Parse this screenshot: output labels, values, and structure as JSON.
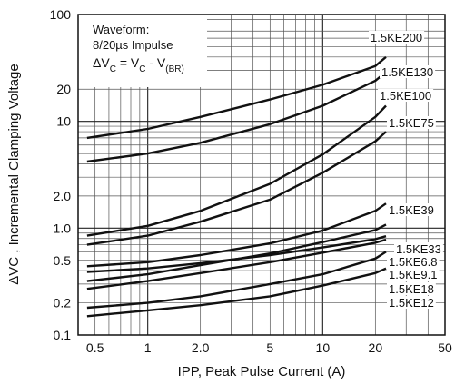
{
  "chart_data": {
    "type": "line",
    "xscale": "log",
    "yscale": "log",
    "xlim": [
      0.4,
      50
    ],
    "ylim": [
      0.1,
      100
    ],
    "grid": true,
    "xlabel": "IPP, Peak Pulse Current (A)",
    "ylabel": "ΔVC , Incremental Clamping Voltage",
    "x_ticks": [
      {
        "v": 0.5,
        "label": "0.5"
      },
      {
        "v": 1,
        "label": "1"
      },
      {
        "v": 2,
        "label": "2.0"
      },
      {
        "v": 5,
        "label": "5"
      },
      {
        "v": 10,
        "label": "10"
      },
      {
        "v": 20,
        "label": "20"
      },
      {
        "v": 50,
        "label": "50"
      }
    ],
    "y_ticks": [
      {
        "v": 0.1,
        "label": "0.1"
      },
      {
        "v": 0.2,
        "label": "0.2"
      },
      {
        "v": 0.5,
        "label": "0.5"
      },
      {
        "v": 1,
        "label": "1.0"
      },
      {
        "v": 2,
        "label": "2.0"
      },
      {
        "v": 10,
        "label": "10"
      },
      {
        "v": 20,
        "label": "20"
      },
      {
        "v": 100,
        "label": "100"
      }
    ],
    "annotation": {
      "line1": "Waveform:",
      "line2": "8/20µs Impulse",
      "line3_prefix": "ΔV",
      "line3_sub1": "C",
      "line3_mid": " = V",
      "line3_sub2": "C",
      "line3_dash": " - V",
      "line3_sub3": "(BR)"
    },
    "series": [
      {
        "name": "1.5KE200",
        "x": [
          0.45,
          1,
          2,
          5,
          10,
          20,
          23
        ],
        "y": [
          7.0,
          8.5,
          11,
          16,
          22,
          33,
          40
        ]
      },
      {
        "name": "1.5KE130",
        "x": [
          0.45,
          1,
          2,
          5,
          10,
          20,
          23
        ],
        "y": [
          4.2,
          5.0,
          6.3,
          9.4,
          14,
          24,
          29
        ]
      },
      {
        "name": "1.5KE100",
        "x": [
          0.45,
          1,
          2,
          5,
          10,
          20,
          23
        ],
        "y": [
          0.85,
          1.05,
          1.45,
          2.6,
          4.9,
          11,
          14
        ]
      },
      {
        "name": "1.5KE75",
        "x": [
          0.45,
          1,
          2,
          5,
          10,
          20,
          23
        ],
        "y": [
          0.7,
          0.85,
          1.15,
          1.85,
          3.3,
          6.5,
          8
        ]
      },
      {
        "name": "1.5KE39",
        "x": [
          0.45,
          1,
          2,
          5,
          10,
          20,
          23
        ],
        "y": [
          0.44,
          0.48,
          0.56,
          0.72,
          0.95,
          1.45,
          1.7
        ]
      },
      {
        "name": "1.5KE33",
        "x": [
          0.45,
          1,
          2,
          5,
          10,
          20,
          23
        ],
        "y": [
          0.32,
          0.37,
          0.45,
          0.58,
          0.74,
          0.96,
          1.08
        ]
      },
      {
        "name": "1.5KE6.8",
        "x": [
          0.45,
          1,
          2,
          5,
          10,
          20,
          23
        ],
        "y": [
          0.39,
          0.42,
          0.47,
          0.56,
          0.66,
          0.79,
          0.84
        ]
      },
      {
        "name": "1.5KE9.1",
        "x": [
          0.45,
          1,
          2,
          5,
          10,
          20,
          23
        ],
        "y": [
          0.27,
          0.32,
          0.38,
          0.48,
          0.59,
          0.73,
          0.78
        ]
      },
      {
        "name": "1.5KE18",
        "x": [
          0.45,
          1,
          2,
          5,
          10,
          20,
          23
        ],
        "y": [
          0.18,
          0.2,
          0.23,
          0.3,
          0.37,
          0.52,
          0.6
        ]
      },
      {
        "name": "1.5KE12",
        "x": [
          0.45,
          1,
          2,
          5,
          10,
          20,
          23
        ],
        "y": [
          0.15,
          0.17,
          0.19,
          0.23,
          0.29,
          0.38,
          0.42
        ]
      }
    ]
  }
}
